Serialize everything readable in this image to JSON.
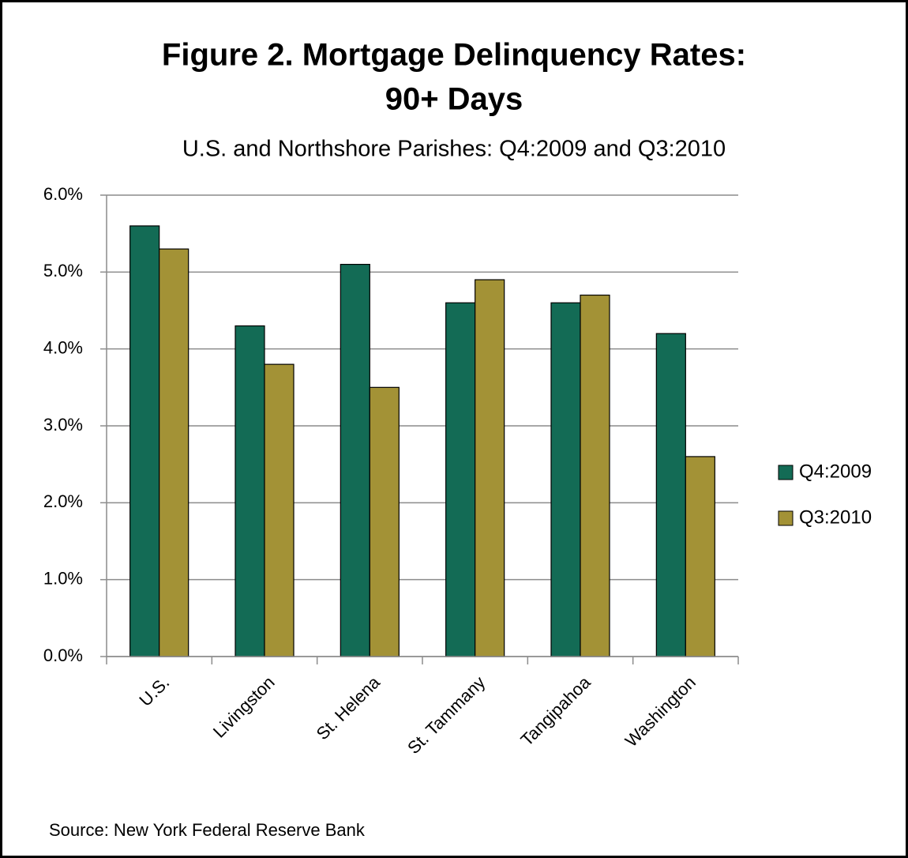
{
  "chart_data": {
    "type": "bar",
    "title": [
      "Figure 2. Mortgage Delinquency Rates:",
      "90+ Days"
    ],
    "subtitle": "U.S. and Northshore  Parishes: Q4:2009 and Q3:2010",
    "categories": [
      "U.S.",
      "Livingston",
      "St. Helena",
      "St. Tammany",
      "Tangipahoa",
      "Washington"
    ],
    "series": [
      {
        "name": "Q4:2009",
        "color": "#136b55",
        "values": [
          5.6,
          4.3,
          5.1,
          4.6,
          4.6,
          4.2
        ]
      },
      {
        "name": "Q3:2010",
        "color": "#a39236",
        "values": [
          5.3,
          3.8,
          3.5,
          4.9,
          4.7,
          2.6
        ]
      }
    ],
    "ylim": [
      0,
      6
    ],
    "yticks": [
      {
        "value": 0,
        "label": "0.0%"
      },
      {
        "value": 1,
        "label": "1.0%"
      },
      {
        "value": 2,
        "label": "2.0%"
      },
      {
        "value": 3,
        "label": "3.0%"
      },
      {
        "value": 4,
        "label": "4.0%"
      },
      {
        "value": 5,
        "label": "5.0%"
      },
      {
        "value": 6,
        "label": "6.0%"
      }
    ],
    "grid": true,
    "legend": "right",
    "source": "Source: New York  Federal Reserve Bank"
  }
}
